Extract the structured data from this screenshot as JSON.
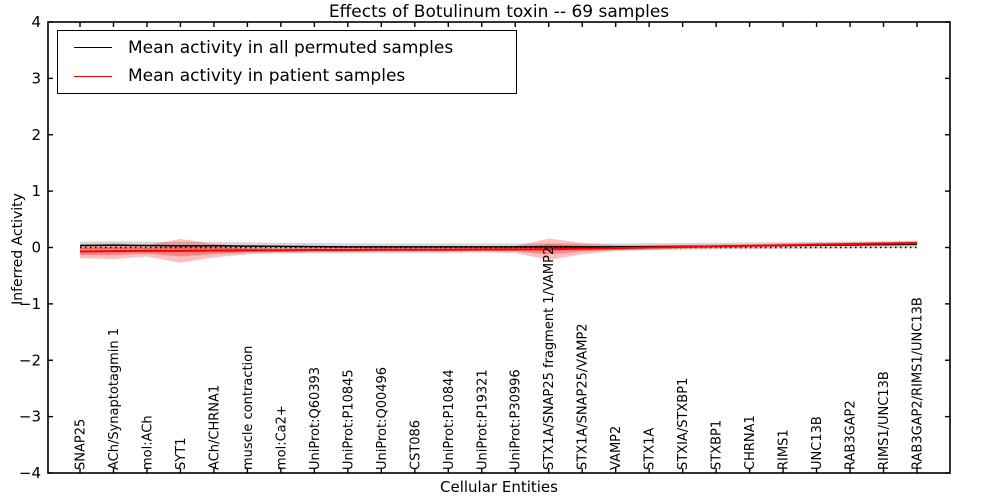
{
  "figure": {
    "title": "Effects of Botulinum toxin -- 69 samples",
    "xlabel": "Cellular Entities",
    "ylabel": "Inferred Activity"
  },
  "legend": {
    "items": [
      {
        "label": "Mean activity in all permuted samples",
        "color": "#000000"
      },
      {
        "label": "Mean activity in patient samples",
        "color": "#ff0000"
      }
    ],
    "position": "upper left"
  },
  "chart_data": {
    "type": "line",
    "title": "Effects of Botulinum toxin -- 69 samples",
    "xlabel": "Cellular Entities",
    "ylabel": "Inferred Activity",
    "ylim": [
      -4,
      4
    ],
    "yticks": [
      -4,
      -3,
      -2,
      -1,
      0,
      1,
      2,
      3,
      4
    ],
    "grid": false,
    "legend_position": "upper left",
    "categories": [
      "SNAP25",
      "ACh/Synaptotagmin 1",
      "mol:ACh",
      "SYT1",
      "ACh/CHRNA1",
      "muscle contraction",
      "mol:Ca2+",
      "UniProt:Q60393",
      "UniProt:P10845",
      "UniProt:Q00496",
      "CST086",
      "UniProt:P10844",
      "UniProt:P19321",
      "UniProt:P30996",
      "STX1A/SNAP25 fragment 1/VAMP2",
      "STX1A/SNAP25/VAMP2",
      "VAMP2",
      "STX1A",
      "STXIA/STXBP1",
      "STXBP1",
      "CHRNA1",
      "RIMS1",
      "UNC13B",
      "RAB3GAP2",
      "RIMS1/UNC13B",
      "RAB3GAP2/RIMS1/UNC13B"
    ],
    "series": [
      {
        "name": "Mean activity in all permuted samples",
        "color": "#000000",
        "style": "solid",
        "linewidth": 1.5,
        "values": [
          0.035,
          0.04,
          0.035,
          0.03,
          0.03,
          0.025,
          0.02,
          0.015,
          0.01,
          0.01,
          0.01,
          0.01,
          0.01,
          0.01,
          0.01,
          0.01,
          0.01,
          0.015,
          0.02,
          0.025,
          0.03,
          0.035,
          0.04,
          0.045,
          0.05,
          0.055
        ]
      },
      {
        "name": "Mean activity in patient samples",
        "color": "#ff0000",
        "style": "solid",
        "linewidth": 2,
        "values": [
          -0.07,
          -0.065,
          -0.06,
          -0.06,
          -0.055,
          -0.05,
          -0.05,
          -0.045,
          -0.045,
          -0.04,
          -0.04,
          -0.04,
          -0.035,
          -0.035,
          -0.03,
          -0.02,
          -0.01,
          0.0,
          0.01,
          0.02,
          0.03,
          0.04,
          0.05,
          0.06,
          0.07,
          0.08
        ]
      }
    ],
    "bands": [
      {
        "name": "permuted-samples-spread",
        "color": "#000000",
        "opacity": 0.16,
        "center_series": 0,
        "halfwidths": [
          0.07,
          0.07,
          0.07,
          0.07,
          0.07,
          0.065,
          0.065,
          0.065,
          0.065,
          0.06,
          0.06,
          0.06,
          0.06,
          0.06,
          0.06,
          0.06,
          0.06,
          0.06,
          0.06,
          0.06,
          0.06,
          0.06,
          0.06,
          0.06,
          0.06,
          0.06
        ]
      },
      {
        "name": "patient-samples-spread-outer",
        "color": "#ff0000",
        "opacity": 0.25,
        "center_series": 1,
        "halfwidths": [
          0.12,
          0.14,
          0.1,
          0.21,
          0.12,
          0.07,
          0.05,
          0.05,
          0.05,
          0.05,
          0.05,
          0.05,
          0.05,
          0.06,
          0.19,
          0.1,
          0.05,
          0.04,
          0.035,
          0.03,
          0.03,
          0.03,
          0.03,
          0.03,
          0.03,
          0.03
        ]
      },
      {
        "name": "patient-samples-spread-inner",
        "color": "#ff0000",
        "opacity": 0.3,
        "center_series": 1,
        "halfwidths": [
          0.06,
          0.07,
          0.05,
          0.1,
          0.06,
          0.035,
          0.025,
          0.025,
          0.025,
          0.025,
          0.025,
          0.025,
          0.025,
          0.03,
          0.09,
          0.05,
          0.025,
          0.02,
          0.018,
          0.015,
          0.015,
          0.015,
          0.015,
          0.015,
          0.015,
          0.015
        ]
      }
    ],
    "zero_line": {
      "y": 0,
      "style": "dotted",
      "color": "#000000"
    }
  }
}
